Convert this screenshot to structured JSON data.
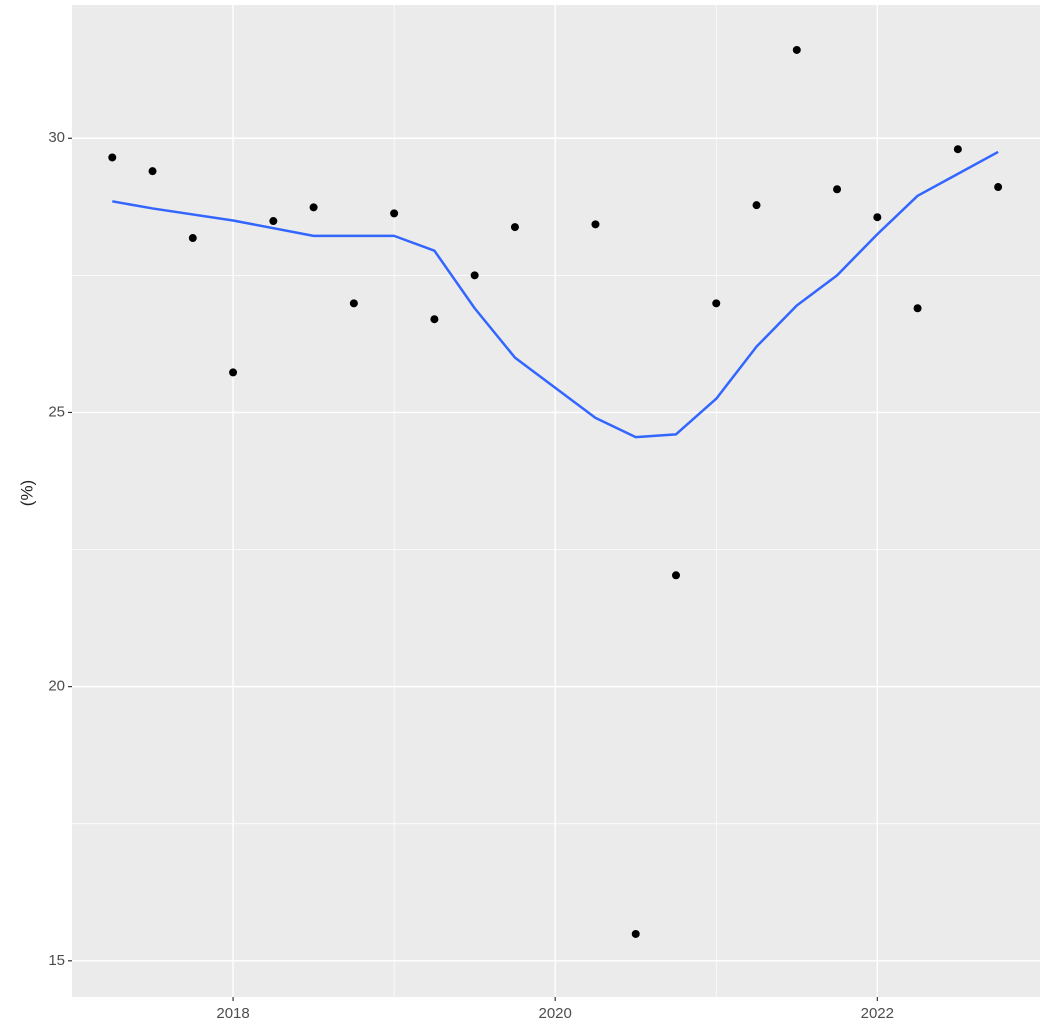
{
  "chart_data": {
    "type": "scatter",
    "y_label": "(%)",
    "xlim": [
      2017.0,
      2023.01
    ],
    "ylim": [
      14.34,
      32.43
    ],
    "xticks": [
      2018,
      2020,
      2022
    ],
    "yticks": [
      15,
      20,
      25,
      30
    ],
    "x_minor_ticks": [
      2019,
      2021
    ],
    "y_minor_ticks": [
      17.5,
      22.5,
      27.5
    ],
    "grid": true,
    "series": [
      {
        "kind": "points",
        "color": "#000000",
        "x": [
          2017.25,
          2017.5,
          2017.75,
          2018.0,
          2018.25,
          2018.5,
          2018.75,
          2019.0,
          2019.25,
          2019.5,
          2019.75,
          2020.25,
          2020.5,
          2020.75,
          2021.0,
          2021.25,
          2021.5,
          2021.75,
          2022.0,
          2022.25,
          2022.5,
          2022.75
        ],
        "values": [
          29.65,
          29.4,
          28.18,
          25.73,
          28.49,
          28.74,
          26.99,
          28.63,
          26.7,
          27.5,
          28.38,
          28.43,
          15.49,
          22.03,
          26.99,
          28.78,
          31.61,
          29.07,
          28.56,
          26.9,
          29.8,
          29.11
        ]
      },
      {
        "kind": "smooth",
        "color": "#3366ff",
        "x": [
          2017.25,
          2017.5,
          2018.0,
          2018.5,
          2019.0,
          2019.25,
          2019.5,
          2019.75,
          2020.0,
          2020.25,
          2020.5,
          2020.75,
          2021.0,
          2021.25,
          2021.5,
          2021.75,
          2022.0,
          2022.25,
          2022.5,
          2022.75
        ],
        "values": [
          28.85,
          28.72,
          28.5,
          28.22,
          28.22,
          27.95,
          26.9,
          26.0,
          25.45,
          24.9,
          24.55,
          24.6,
          25.25,
          26.2,
          26.95,
          27.5,
          28.25,
          28.95,
          29.35,
          29.75
        ]
      }
    ]
  }
}
